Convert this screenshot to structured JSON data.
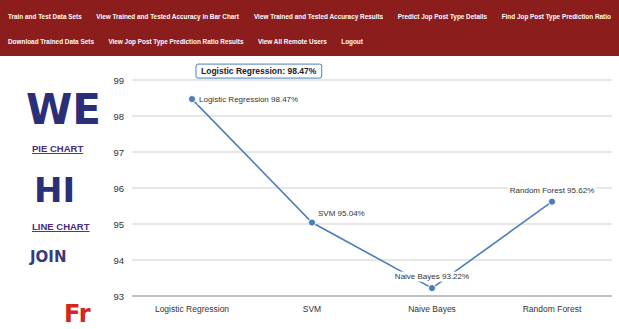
{
  "nav": {
    "rows": [
      [
        "Train and Test Data Sets",
        "View Trained and Tested Accuracy in Bar Chart",
        "View Trained and Tested Accuracy Results",
        "Predict Jop Post Type Details",
        "Find Jop Post Type Prediction Ratio"
      ],
      [
        "Download Trained Data Sets",
        "View Jop Post Type Prediction Ratio Results",
        "View All Remote Users",
        "Logout"
      ]
    ]
  },
  "sidebar": {
    "links": [
      "PIE CHART",
      "LINE CHART"
    ]
  },
  "background_text": [
    "WE",
    "HI",
    "JOIN",
    "Fr"
  ],
  "chart_data": {
    "type": "line",
    "categories": [
      "Logistic Regression",
      "SVM",
      "Naive Bayes",
      "Random Forest"
    ],
    "values": [
      98.47,
      95.04,
      93.22,
      95.62
    ],
    "value_labels": [
      "Logistic Regression 98.47%",
      "SVM 95.04%",
      "Naive Bayes 93.22%",
      "Random Forest 95.62%"
    ],
    "data_labels": true,
    "annotation": "Logistic Regression: 98.47%",
    "color": "#4a7ebb",
    "marker": "circle",
    "ylim": [
      93,
      99
    ],
    "yticks": [
      93,
      94,
      95,
      96,
      97,
      98,
      99
    ],
    "grid": true
  }
}
